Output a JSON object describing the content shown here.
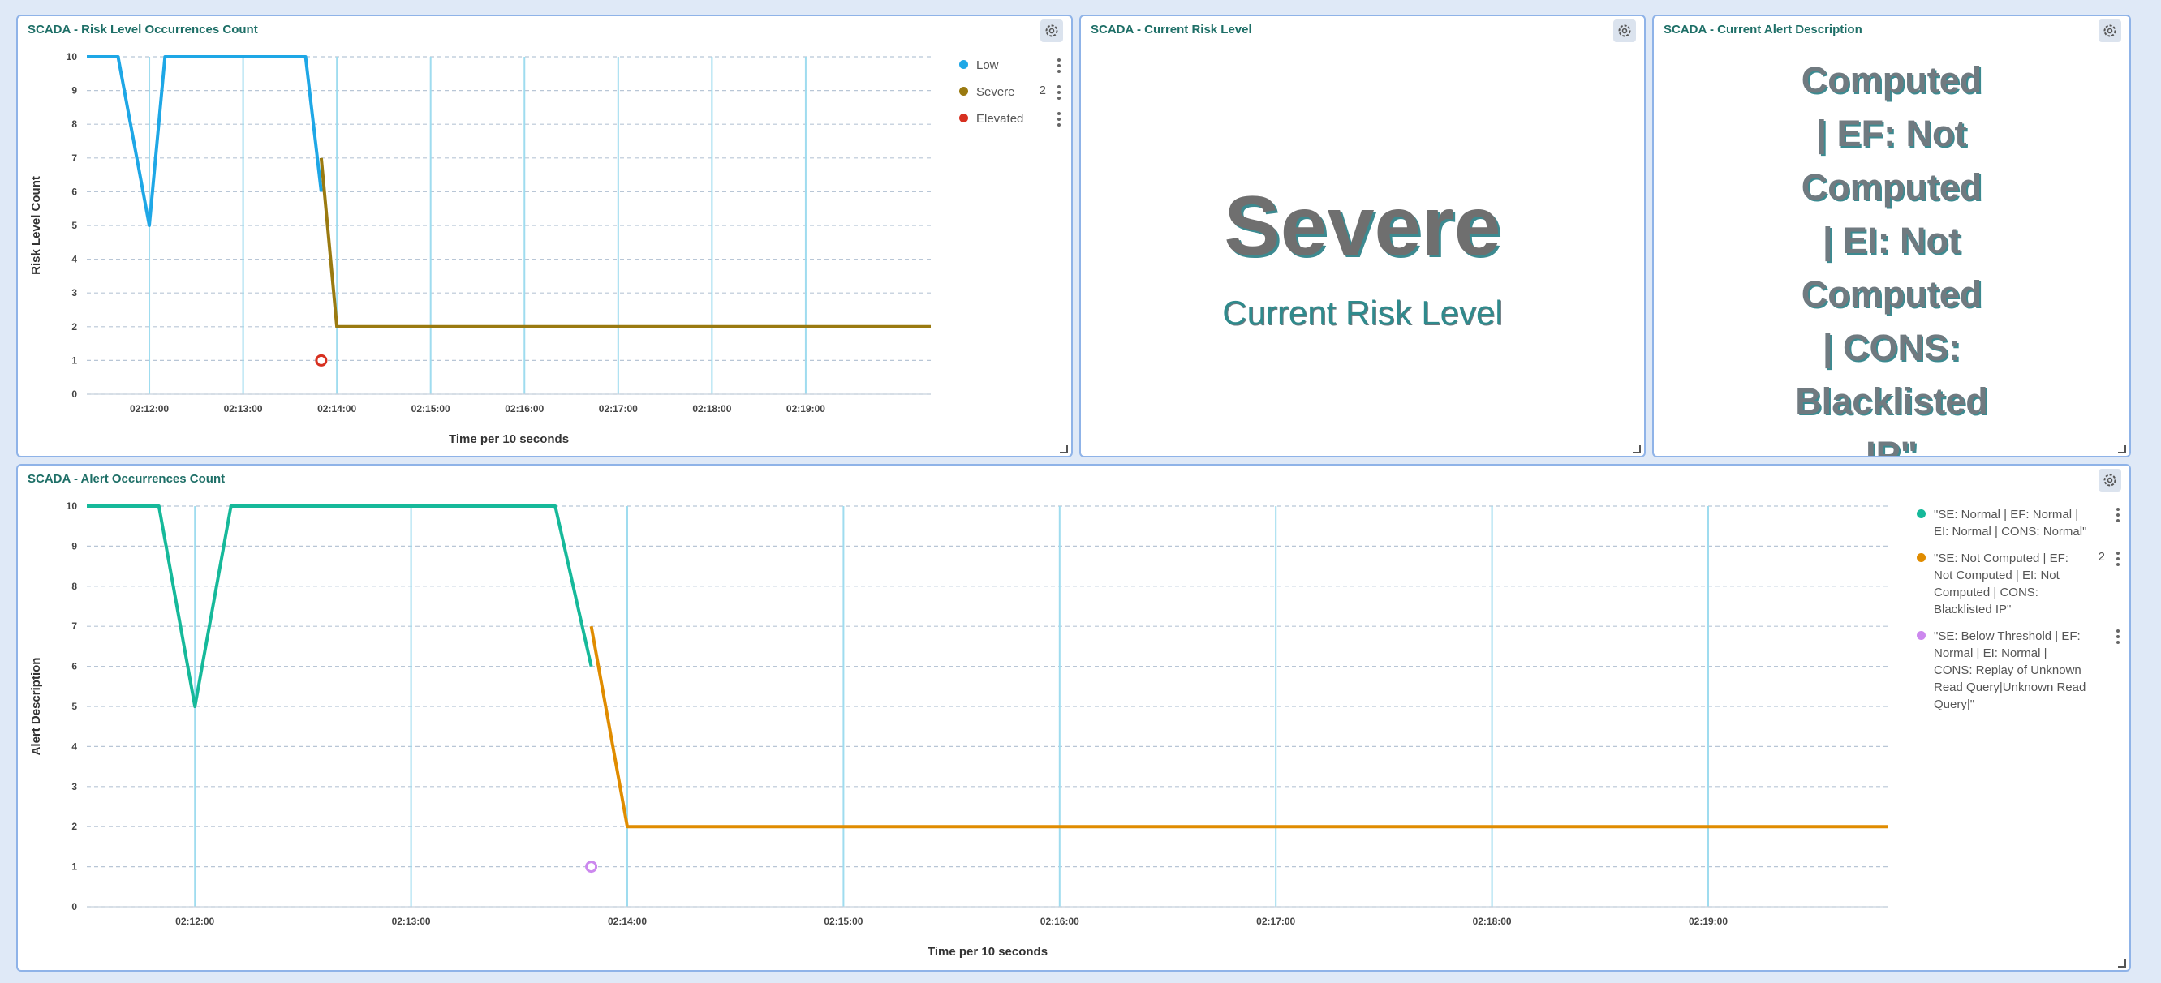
{
  "colors": {
    "low": "#1ea7e6",
    "severe": "#e08c00",
    "elevated": "#d73020",
    "normal_alert": "#16b99a",
    "below_threshold": "#cc88ee",
    "grid_h": "#b8c6d6",
    "grid_v": "#9fdcef"
  },
  "icons": {
    "settings": "gear-icon",
    "menu": "kebab-menu-icon",
    "resize": "resize-corner-icon"
  },
  "panels": {
    "risk_chart": {
      "title": "SCADA - Risk Level Occurrences Count"
    },
    "current_risk": {
      "title": "SCADA - Current Risk Level",
      "value": "Severe",
      "label": "Current Risk Level"
    },
    "alert_desc": {
      "title": "SCADA - Current Alert Description",
      "lines": [
        "Computed",
        "| EF: Not",
        "Computed",
        "| EI: Not",
        "Computed",
        "| CONS:",
        "Blacklisted",
        "IP\""
      ]
    },
    "alert_chart": {
      "title": "SCADA - Alert Occurrences Count"
    }
  },
  "chart_data": [
    {
      "type": "line",
      "title": "SCADA - Risk Level Occurrences Count",
      "xlabel": "Time per 10 seconds",
      "ylabel": "Risk Level Count",
      "ylim": [
        0,
        10
      ],
      "yticks": [
        "0",
        "1",
        "2",
        "3",
        "4",
        "5",
        "6",
        "7",
        "8",
        "9",
        "10"
      ],
      "xticks": [
        "02:12:00",
        "02:13:00",
        "02:14:00",
        "02:15:00",
        "02:16:00",
        "02:17:00",
        "02:18:00",
        "02:19:00"
      ],
      "xlim": [
        "02:11:20",
        "02:20:20"
      ],
      "grid": true,
      "legend_position": "right",
      "series": [
        {
          "name": "Low",
          "color": "#1ea7e6",
          "points": [
            [
              "02:11:20",
              10
            ],
            [
              "02:11:40",
              10
            ],
            [
              "02:12:00",
              5
            ],
            [
              "02:12:10",
              10
            ],
            [
              "02:13:40",
              10
            ],
            [
              "02:13:50",
              6
            ]
          ]
        },
        {
          "name": "Severe",
          "legend_count": "2",
          "color": "#9a7a10",
          "points": [
            [
              "02:13:50",
              7
            ],
            [
              "02:14:00",
              2
            ],
            [
              "02:20:20",
              2
            ]
          ]
        },
        {
          "name": "Elevated",
          "color": "#d73020",
          "marker_only": true,
          "points": [
            [
              "02:13:50",
              1
            ]
          ]
        }
      ]
    },
    {
      "type": "line",
      "title": "SCADA - Alert Occurrences Count",
      "xlabel": "Time per 10 seconds",
      "ylabel": "Alert Description",
      "ylim": [
        0,
        10
      ],
      "yticks": [
        "0",
        "1",
        "2",
        "3",
        "4",
        "5",
        "6",
        "7",
        "8",
        "9",
        "10"
      ],
      "xticks": [
        "02:12:00",
        "02:13:00",
        "02:14:00",
        "02:15:00",
        "02:16:00",
        "02:17:00",
        "02:18:00",
        "02:19:00"
      ],
      "xlim": [
        "02:11:30",
        "02:19:50"
      ],
      "grid": true,
      "legend_position": "right",
      "series": [
        {
          "name": "\"SE: Normal | EF: Normal | EI: Normal | CONS: Normal\"",
          "color": "#16b99a",
          "points": [
            [
              "02:11:30",
              10
            ],
            [
              "02:11:50",
              10
            ],
            [
              "02:12:00",
              5
            ],
            [
              "02:12:10",
              10
            ],
            [
              "02:13:40",
              10
            ],
            [
              "02:13:50",
              6
            ]
          ]
        },
        {
          "name": "\"SE: Not Computed | EF: Not Computed | EI: Not Computed | CONS: Blacklisted IP\"",
          "legend_count": "2",
          "color": "#e08c00",
          "points": [
            [
              "02:13:50",
              7
            ],
            [
              "02:14:00",
              2
            ],
            [
              "02:19:50",
              2
            ]
          ]
        },
        {
          "name": "\"SE: Below Threshold | EF: Normal | EI: Normal | CONS: Replay of Unknown Read Query|Unknown Read Query|\"",
          "color": "#cc88ee",
          "marker_only": true,
          "points": [
            [
              "02:13:50",
              1
            ]
          ]
        }
      ]
    }
  ]
}
